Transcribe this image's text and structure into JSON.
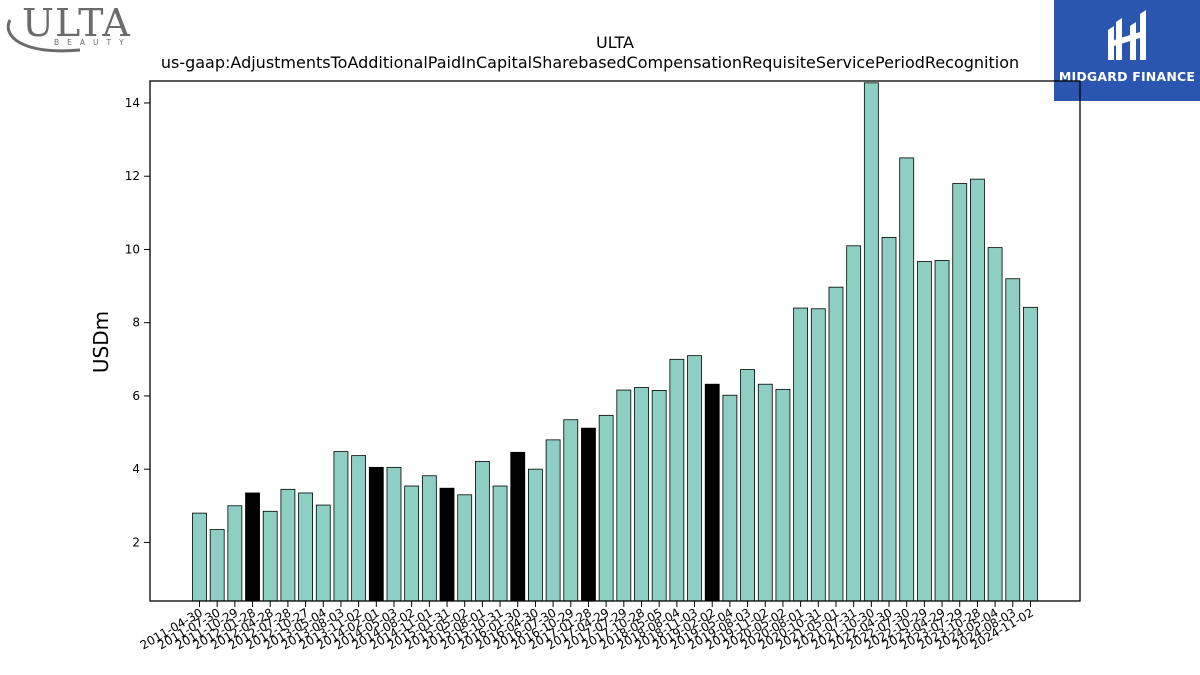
{
  "logos": {
    "left_text": "ULTA",
    "left_subtext": "BEAUTY",
    "right_text": "MIDGARD FINANCE"
  },
  "colors": {
    "bar_default": "#8ecfc3",
    "bar_highlight": "#000000",
    "logo_right_bg": "#2a56b0",
    "logo_left": "#6b6b6b"
  },
  "chart_data": {
    "type": "bar",
    "title": "ULTA",
    "subtitle": "us-gaap:AdjustmentsToAdditionalPaidInCapitalSharebasedCompensationRequisiteServicePeriodRecognition",
    "xlabel": "",
    "ylabel": "USDm",
    "ylim": [
      0.4,
      14.6
    ],
    "yticks": [
      2,
      4,
      6,
      8,
      10,
      12,
      14
    ],
    "grid": false,
    "categories": [
      "2011-04-30",
      "2011-07-30",
      "2011-10-29",
      "2012-01-28",
      "2012-04-28",
      "2012-07-28",
      "2012-10-27",
      "2013-05-04",
      "2013-08-03",
      "2013-11-02",
      "2014-02-01",
      "2014-05-03",
      "2014-08-02",
      "2014-11-01",
      "2015-01-31",
      "2015-05-02",
      "2015-08-01",
      "2015-10-31",
      "2016-01-30",
      "2016-04-30",
      "2016-07-30",
      "2016-10-29",
      "2017-01-28",
      "2017-04-29",
      "2017-07-29",
      "2017-10-28",
      "2018-05-05",
      "2018-08-04",
      "2018-11-03",
      "2019-02-02",
      "2019-05-04",
      "2019-08-03",
      "2019-11-02",
      "2020-05-02",
      "2020-08-01",
      "2020-10-31",
      "2021-05-01",
      "2021-07-31",
      "2021-10-30",
      "2022-04-30",
      "2022-07-30",
      "2022-10-29",
      "2023-04-29",
      "2023-07-29",
      "2023-10-28",
      "2024-05-04",
      "2024-08-03",
      "2024-11-02"
    ],
    "values": [
      2.8,
      2.35,
      3.0,
      3.35,
      2.85,
      3.45,
      3.35,
      3.02,
      4.48,
      4.37,
      4.05,
      4.05,
      3.54,
      3.82,
      3.48,
      3.3,
      4.21,
      3.54,
      4.46,
      4.0,
      4.8,
      5.35,
      5.12,
      5.47,
      6.16,
      6.23,
      6.15,
      7.0,
      7.1,
      6.32,
      6.02,
      6.72,
      6.32,
      6.18,
      8.4,
      8.38,
      8.97,
      10.1,
      14.55,
      10.33,
      12.5,
      9.67,
      9.7,
      11.8,
      11.92,
      10.05,
      9.2,
      8.42
    ],
    "highlighted_indices": [
      3,
      10,
      14,
      18,
      22,
      29
    ]
  }
}
